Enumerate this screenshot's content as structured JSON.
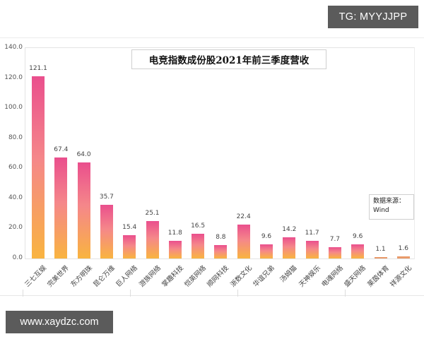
{
  "watermarks": {
    "top_right": "TG: MYYJJPP",
    "bottom_left": "www.xaydzc.com"
  },
  "source_note": {
    "line1": "数据来源：",
    "line2": "Wind"
  },
  "colors": {
    "bar_top": "#ea4f8d",
    "bar_bottom": "#f9b440",
    "badge_bg": "#5b5b5b"
  },
  "chart_data": {
    "type": "bar",
    "title": "电竞指数成份股2021年前三季度营收",
    "xlabel": "",
    "ylabel": "",
    "ylim": [
      0,
      140
    ],
    "yticks": [
      "0.0",
      "20.0",
      "40.0",
      "60.0",
      "80.0",
      "100.0",
      "120.0",
      "140.0"
    ],
    "grid": false,
    "legend": null,
    "categories": [
      "三七互娱",
      "完美世界",
      "东方明珠",
      "昆仑万维",
      "巨人网络",
      "游族网络",
      "掌趣科技",
      "恺英网络",
      "顺网科技",
      "浙数文化",
      "华谊兄弟",
      "汤姆猫",
      "天神娱乐",
      "电魂网络",
      "盛天网络",
      "莱茵体育",
      "祥源文化"
    ],
    "values": [
      121.1,
      67.4,
      64.0,
      35.7,
      15.4,
      25.1,
      11.8,
      16.5,
      8.8,
      22.4,
      9.6,
      14.2,
      11.7,
      7.7,
      9.6,
      1.1,
      1.6
    ],
    "value_labels": [
      "121.1",
      "67.4",
      "64.0",
      "35.7",
      "15.4",
      "25.1",
      "11.8",
      "16.5",
      "8.8",
      "22.4",
      "9.6",
      "14.2",
      "11.7",
      "7.7",
      "9.6",
      "1.1",
      "1.6"
    ],
    "annotations": [
      "数据来源：Wind"
    ]
  }
}
